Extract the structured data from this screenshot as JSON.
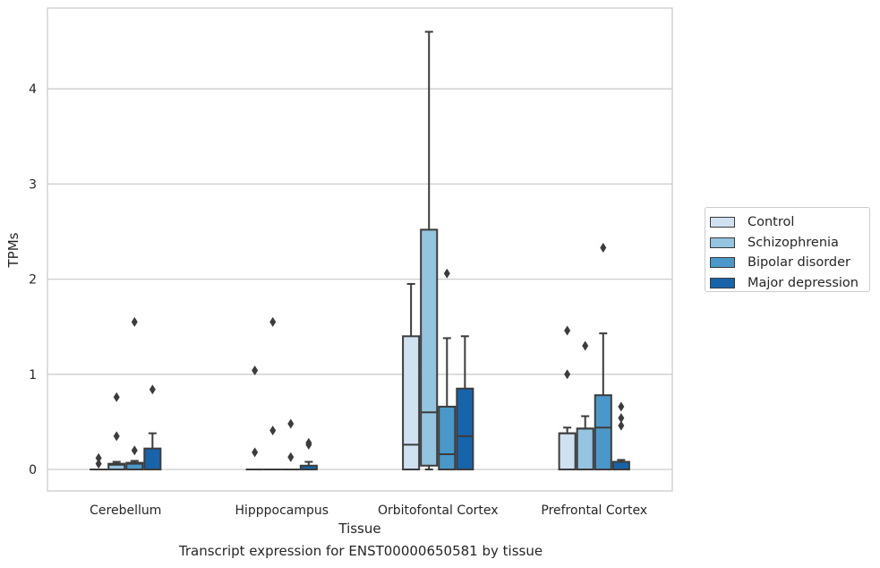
{
  "chart_data": {
    "type": "box",
    "title": "",
    "xlabel": "Tissue",
    "ylabel": "TPMs",
    "ylim": [
      -0.22,
      4.85
    ],
    "yticks": [
      0,
      1,
      2,
      3,
      4
    ],
    "grid": "horizontal",
    "legend_position": "right",
    "categories": [
      "Cerebellum",
      "Hipppocampus",
      "Orbitofontal Cortex",
      "Prefrontal Cortex"
    ],
    "series": [
      {
        "name": "Control",
        "color": "#d0e1f2",
        "boxes": [
          {
            "q1": 0.0,
            "median": 0.0,
            "q3": 0.0,
            "whisker_low": 0.0,
            "whisker_high": 0.0,
            "outliers": [
              0.06,
              0.12
            ]
          },
          {
            "q1": 0.0,
            "median": 0.0,
            "q3": 0.0,
            "whisker_low": 0.0,
            "whisker_high": 0.0,
            "outliers": [
              0.18,
              1.04
            ]
          },
          {
            "q1": 0.0,
            "median": 0.26,
            "q3": 1.4,
            "whisker_low": 0.0,
            "whisker_high": 1.95,
            "outliers": []
          },
          {
            "q1": 0.0,
            "median": 0.38,
            "q3": 0.38,
            "whisker_low": 0.0,
            "whisker_high": 0.44,
            "outliers": [
              1.0,
              1.46
            ]
          }
        ]
      },
      {
        "name": "Schizophrenia",
        "color": "#94c4df",
        "boxes": [
          {
            "q1": 0.0,
            "median": 0.05,
            "q3": 0.06,
            "whisker_low": 0.0,
            "whisker_high": 0.08,
            "outliers": [
              0.35,
              0.76
            ]
          },
          {
            "q1": 0.0,
            "median": 0.0,
            "q3": 0.0,
            "whisker_low": 0.0,
            "whisker_high": 0.0,
            "outliers": [
              0.41,
              1.55
            ]
          },
          {
            "q1": 0.04,
            "median": 0.6,
            "q3": 2.52,
            "whisker_low": 0.0,
            "whisker_high": 4.6,
            "outliers": []
          },
          {
            "q1": 0.0,
            "median": 0.43,
            "q3": 0.43,
            "whisker_low": 0.0,
            "whisker_high": 0.56,
            "outliers": [
              1.3
            ]
          }
        ]
      },
      {
        "name": "Bipolar disorder",
        "color": "#4a98c9",
        "boxes": [
          {
            "q1": 0.0,
            "median": 0.06,
            "q3": 0.07,
            "whisker_low": 0.0,
            "whisker_high": 0.09,
            "outliers": [
              0.2,
              1.55
            ]
          },
          {
            "q1": 0.0,
            "median": 0.0,
            "q3": 0.0,
            "whisker_low": 0.0,
            "whisker_high": 0.0,
            "outliers": [
              0.13,
              0.48
            ]
          },
          {
            "q1": 0.0,
            "median": 0.16,
            "q3": 0.66,
            "whisker_low": 0.0,
            "whisker_high": 1.38,
            "outliers": [
              2.06
            ]
          },
          {
            "q1": 0.0,
            "median": 0.44,
            "q3": 0.78,
            "whisker_low": 0.0,
            "whisker_high": 1.43,
            "outliers": [
              2.33
            ]
          }
        ]
      },
      {
        "name": "Major depression",
        "color": "#1764ab",
        "boxes": [
          {
            "q1": 0.0,
            "median": 0.0,
            "q3": 0.22,
            "whisker_low": 0.0,
            "whisker_high": 0.38,
            "outliers": [
              0.84
            ]
          },
          {
            "q1": 0.0,
            "median": 0.0,
            "q3": 0.04,
            "whisker_low": 0.0,
            "whisker_high": 0.08,
            "outliers": [
              0.26,
              0.28
            ]
          },
          {
            "q1": 0.0,
            "median": 0.35,
            "q3": 0.85,
            "whisker_low": 0.0,
            "whisker_high": 1.4,
            "outliers": []
          },
          {
            "q1": 0.0,
            "median": 0.08,
            "q3": 0.08,
            "whisker_low": 0.0,
            "whisker_high": 0.1,
            "outliers": [
              0.46,
              0.54,
              0.66
            ]
          }
        ]
      }
    ],
    "caption": "Transcript expression for ENST00000650581 by tissue"
  }
}
